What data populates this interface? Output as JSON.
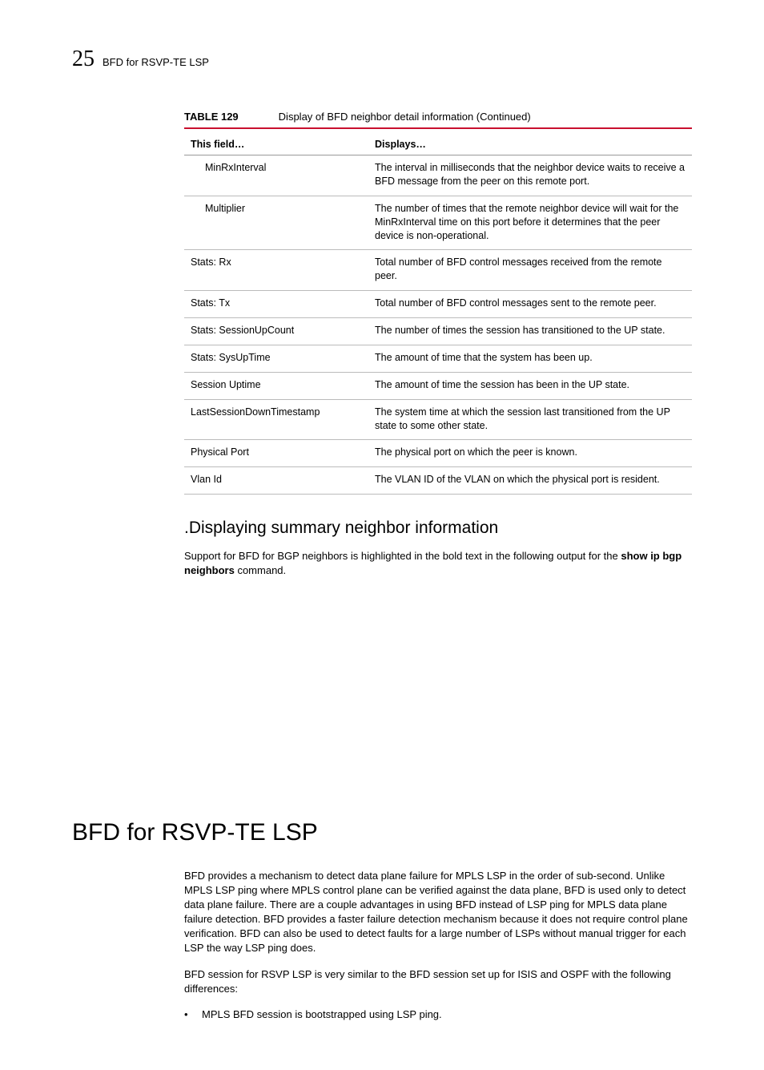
{
  "header": {
    "chapter": "25",
    "running": "BFD for RSVP-TE LSP"
  },
  "table": {
    "label": "TABLE 129",
    "title": "Display of BFD neighbor detail information (Continued)",
    "col1": "This field…",
    "col2": "Displays…",
    "rows": [
      {
        "field": "MinRxInterval",
        "indent": true,
        "desc": "The interval in milliseconds that the neighbor device waits to receive a BFD message from the peer on this remote port."
      },
      {
        "field": "Multiplier",
        "indent": true,
        "desc": "The number of times that the remote neighbor device will wait for the MinRxInterval time on this port before it determines that the peer device is non-operational."
      },
      {
        "field": "Stats: Rx",
        "indent": false,
        "desc": "Total number of BFD control messages received from the remote peer."
      },
      {
        "field": "Stats: Tx",
        "indent": false,
        "desc": "Total number of BFD control messages sent to the remote peer."
      },
      {
        "field": "Stats: SessionUpCount",
        "indent": false,
        "desc": "The number of times the session has transitioned to the UP state."
      },
      {
        "field": "Stats: SysUpTime",
        "indent": false,
        "desc": "The amount of time that the system has been up."
      },
      {
        "field": "Session Uptime",
        "indent": false,
        "desc": "The amount of time the session has been in the UP state."
      },
      {
        "field": "LastSessionDownTimestamp",
        "indent": false,
        "desc": "The system time at which the session last transitioned from the UP state to some other state."
      },
      {
        "field": "Physical Port",
        "indent": false,
        "desc": "The physical port on which the peer is known."
      },
      {
        "field": "Vlan Id",
        "indent": false,
        "desc": "The VLAN ID of the VLAN on which the physical port is resident."
      }
    ],
    "colors": {
      "rule": "#c8102e",
      "row_border": "#bbbbbb",
      "header_border": "#999999"
    },
    "fontsize": 12.5
  },
  "section1": {
    "heading": ".Displaying summary neighbor information",
    "paragraph_pre": "Support for BFD for BGP neighbors is highlighted in the bold text in the following output for the ",
    "cmd": "show ip bgp neighbors",
    "paragraph_post": " command."
  },
  "section2": {
    "heading": "BFD for RSVP-TE LSP",
    "p1": "BFD provides a mechanism to detect data plane failure for MPLS LSP in the order of sub-second. Unlike MPLS LSP ping where MPLS control plane can be verified against the data plane, BFD is used only to detect data plane failure. There are a couple advantages in using BFD instead of LSP ping for MPLS data plane failure detection. BFD provides a faster failure detection mechanism because it does not require control plane verification. BFD can also be used to detect faults for a large number of LSPs without manual trigger for each LSP the way LSP ping does.",
    "p2": "BFD session for RSVP LSP is very similar to the BFD session set up for ISIS and OSPF with the following differences:",
    "bullet1": "MPLS BFD session is bootstrapped using LSP ping."
  }
}
